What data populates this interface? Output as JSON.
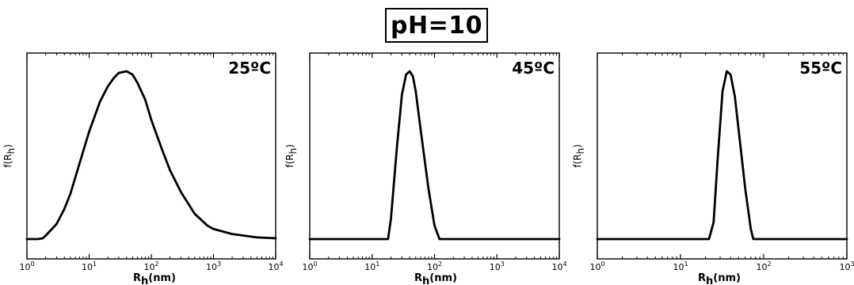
{
  "figure_title": "pH=10",
  "chart_data": [
    {
      "type": "line",
      "annotation": "25ºC",
      "xlabel": "R_h(nm)",
      "ylabel": "f(R_h)",
      "x_scale": "log",
      "xlim": [
        1,
        10000
      ],
      "x_ticks": [
        1,
        10,
        100,
        1000,
        10000
      ],
      "x_tick_labels": [
        "10^0",
        "10^1",
        "10^2",
        "10^3",
        "10^4"
      ],
      "y_tick_labels": "none",
      "ylim": [
        0,
        1.05
      ],
      "grid": false,
      "series": [
        {
          "x": [
            1,
            1.5,
            1.8,
            2,
            3,
            4,
            5,
            7,
            10,
            15,
            20,
            25,
            30,
            40,
            50,
            60,
            80,
            100,
            150,
            200,
            300,
            500,
            800,
            1000,
            2000,
            5000,
            10000
          ],
          "y": [
            0,
            0,
            0.005,
            0.02,
            0.09,
            0.18,
            0.27,
            0.45,
            0.64,
            0.82,
            0.91,
            0.96,
            0.99,
            1.0,
            0.98,
            0.93,
            0.83,
            0.71,
            0.53,
            0.41,
            0.28,
            0.15,
            0.08,
            0.06,
            0.03,
            0.01,
            0.005
          ]
        }
      ]
    },
    {
      "type": "line",
      "annotation": "45ºC",
      "xlabel": "R_h(nm)",
      "ylabel": "f(R_h)",
      "x_scale": "log",
      "xlim": [
        1,
        10000
      ],
      "x_ticks": [
        1,
        10,
        100,
        1000,
        10000
      ],
      "x_tick_labels": [
        "10^0",
        "10^1",
        "10^2",
        "10^3",
        "10^4"
      ],
      "y_tick_labels": "none",
      "ylim": [
        0,
        1.05
      ],
      "grid": false,
      "series": [
        {
          "x": [
            1,
            10,
            18,
            20,
            25,
            30,
            35,
            40,
            45,
            50,
            60,
            80,
            100,
            120,
            10000
          ],
          "y": [
            0,
            0,
            0,
            0.12,
            0.55,
            0.86,
            0.98,
            1.0,
            0.97,
            0.88,
            0.65,
            0.3,
            0.08,
            0,
            0
          ]
        }
      ]
    },
    {
      "type": "line",
      "annotation": "55ºC",
      "xlabel": "R_h(nm)",
      "ylabel": "f(R_h)",
      "x_scale": "log",
      "xlim": [
        1,
        1000
      ],
      "x_ticks": [
        1,
        10,
        100,
        1000
      ],
      "x_tick_labels": [
        "10^0",
        "10^1",
        "10^2",
        "10^3"
      ],
      "y_tick_labels": "none",
      "ylim": [
        0,
        1.05
      ],
      "grid": false,
      "series": [
        {
          "x": [
            1,
            10,
            22,
            25,
            28,
            32,
            36,
            40,
            45,
            50,
            60,
            70,
            75,
            1000
          ],
          "y": [
            0,
            0,
            0,
            0.1,
            0.48,
            0.88,
            1.0,
            0.98,
            0.85,
            0.65,
            0.3,
            0.06,
            0,
            0
          ]
        }
      ]
    }
  ]
}
